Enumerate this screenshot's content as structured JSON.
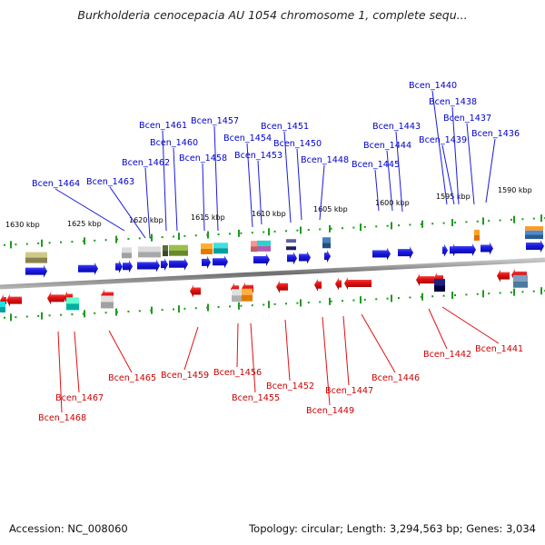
{
  "title": "Burkholderia cenocepacia AU 1054 chromosome 1, complete sequ...",
  "footer": {
    "accession": "Accession: NC_008060",
    "stats": "Topology: circular; Length: 3,294,563 bp; Genes: 3,034"
  },
  "colors": {
    "forward": "#1a1ae0",
    "reverse": "#e01010",
    "forward_label": "#0000cc",
    "reverse_label": "#cc0000",
    "backbone": "#8a8a8a",
    "tick": "#1f9a1f"
  },
  "kbp_labels": [
    "1630 kbp",
    "1625 kbp",
    "1620 kbp",
    "1615 kbp",
    "1610 kbp",
    "1605 kbp",
    "1600 kbp",
    "1595 kbp",
    "1590 kbp"
  ],
  "forward_genes": [
    "Bcen_1464",
    "Bcen_1463",
    "Bcen_1462",
    "Bcen_1461",
    "Bcen_1460",
    "Bcen_1458",
    "Bcen_1457",
    "Bcen_1454",
    "Bcen_1453",
    "Bcen_1451",
    "Bcen_1450",
    "Bcen_1448",
    "Bcen_1445",
    "Bcen_1444",
    "Bcen_1443",
    "Bcen_1440",
    "Bcen_1439",
    "Bcen_1438",
    "Bcen_1437",
    "Bcen_1436"
  ],
  "reverse_genes": [
    "Bcen_1468",
    "Bcen_1467",
    "Bcen_1465",
    "Bcen_1459",
    "Bcen_1456",
    "Bcen_1455",
    "Bcen_1452",
    "Bcen_1449",
    "Bcen_1447",
    "Bcen_1446",
    "Bcen_1442",
    "Bcen_1441"
  ]
}
